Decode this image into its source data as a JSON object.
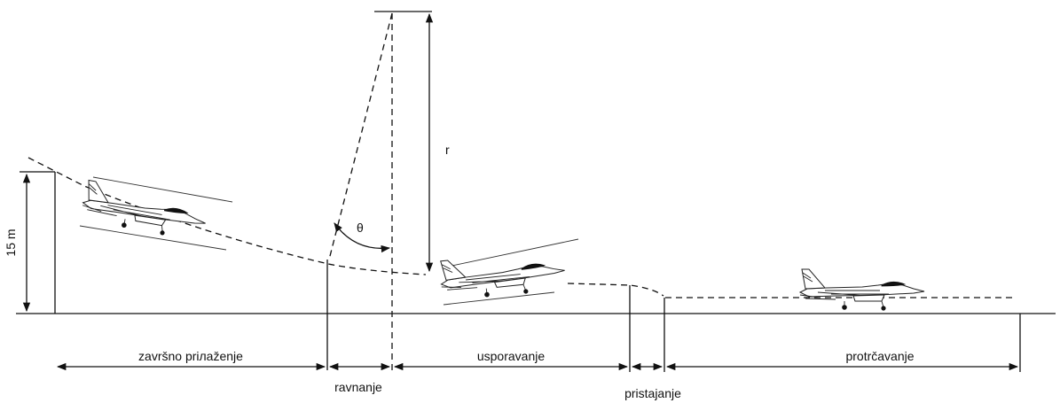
{
  "labels": {
    "height": "15 m",
    "radius": "r",
    "angle": "θ",
    "final_approach": "završno priлаženje",
    "flare": "ravnanje",
    "deceleration": "usporavanje",
    "touchdown": "pristajanje",
    "rollout": "protrčavanje"
  }
}
